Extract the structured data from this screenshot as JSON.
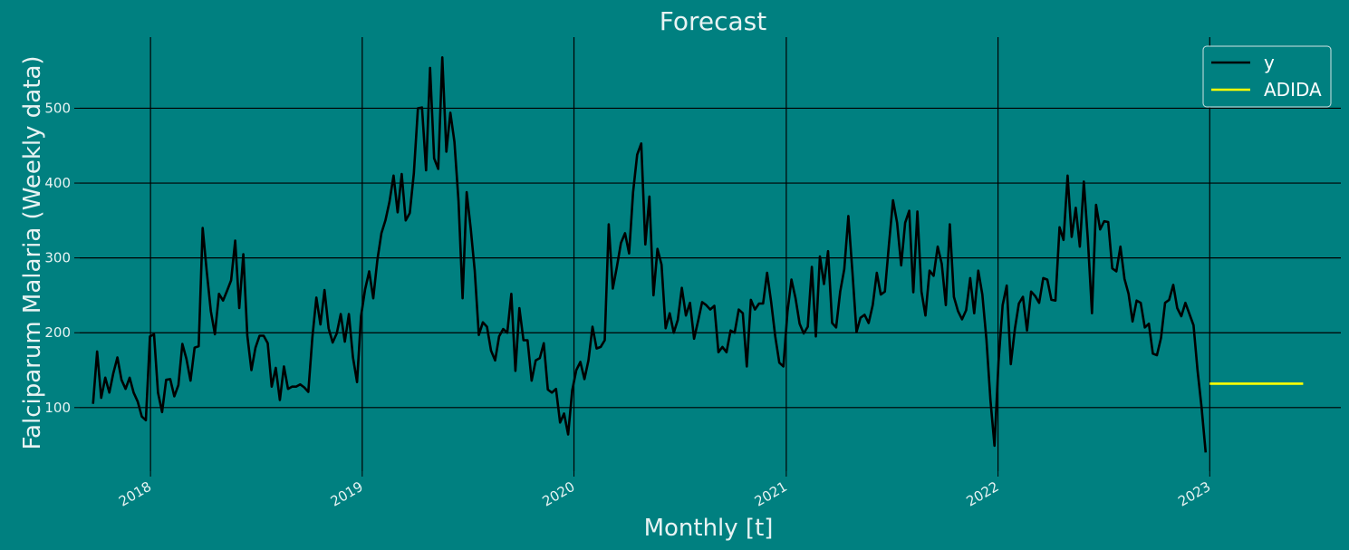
{
  "chart_data": {
    "type": "line",
    "title": "Forecast",
    "xlabel": "Monthly [t]",
    "ylabel": "Falciparum Malaria (Weekly data)",
    "x_range": [
      "2017-09-01",
      "2023-08-15"
    ],
    "ylim": [
      15,
      595
    ],
    "x_ticks": [
      "2018",
      "2019",
      "2020",
      "2021",
      "2022",
      "2023"
    ],
    "y_ticks": [
      100,
      200,
      300,
      400,
      500
    ],
    "grid": true,
    "legend_position": "top-right",
    "colors": {
      "background": "#008080",
      "y": "#000000",
      "ADIDA": "#ffff00",
      "grid": "#000000"
    },
    "series": [
      {
        "name": "y",
        "start_date": "2017-09-24",
        "interval_days": 7,
        "values": [
          105,
          175,
          113,
          140,
          120,
          146,
          167,
          137,
          125,
          140,
          120,
          108,
          88,
          83,
          195,
          198,
          120,
          94,
          137,
          138,
          115,
          130,
          185,
          165,
          136,
          180,
          182,
          340,
          282,
          229,
          198,
          252,
          243,
          256,
          270,
          323,
          233,
          305,
          196,
          150,
          180,
          196,
          196,
          186,
          128,
          153,
          110,
          155,
          125,
          128,
          128,
          131,
          127,
          121,
          194,
          247,
          211,
          257,
          206,
          187,
          199,
          225,
          188,
          225,
          167,
          134,
          222,
          258,
          282,
          246,
          297,
          333,
          350,
          375,
          410,
          361,
          412,
          350,
          360,
          413,
          500,
          501,
          417,
          554,
          433,
          419,
          568,
          442,
          494,
          455,
          376,
          246,
          388,
          339,
          283,
          197,
          214,
          208,
          176,
          163,
          195,
          205,
          200,
          252,
          149,
          233,
          190,
          190,
          136,
          163,
          166,
          186,
          124,
          120,
          125,
          80,
          92,
          64,
          123,
          150,
          161,
          138,
          163,
          208,
          179,
          181,
          190,
          345,
          259,
          288,
          320,
          333,
          306,
          388,
          438,
          453,
          318,
          382,
          250,
          312,
          291,
          206,
          226,
          200,
          217,
          260,
          223,
          240,
          192,
          216,
          241,
          237,
          231,
          236,
          174,
          181,
          174,
          203,
          200,
          231,
          226,
          155,
          244,
          231,
          239,
          239,
          280,
          241,
          195,
          160,
          155,
          228,
          271,
          246,
          212,
          199,
          208,
          288,
          195,
          302,
          265,
          309,
          213,
          207,
          255,
          285,
          356,
          281,
          201,
          220,
          224,
          213,
          237,
          280,
          251,
          255,
          318,
          377,
          347,
          290,
          347,
          363,
          254,
          362,
          255,
          223,
          283,
          276,
          315,
          292,
          237,
          345,
          248,
          229,
          218,
          230,
          273,
          226,
          283,
          251,
          191,
          109,
          49,
          162,
          237,
          263,
          158,
          205,
          239,
          248,
          203,
          255,
          249,
          240,
          273,
          271,
          244,
          243,
          341,
          324,
          410,
          328,
          367,
          315,
          402,
          324,
          226,
          371,
          338,
          349,
          348,
          286,
          282,
          315,
          272,
          252,
          215,
          243,
          240,
          207,
          212,
          172,
          170,
          193,
          240,
          244,
          264,
          233,
          222,
          240,
          225,
          210,
          150,
          100,
          40
        ]
      },
      {
        "name": "ADIDA",
        "start_date": "2023-01-01",
        "interval_days": 7,
        "values": [
          132,
          132,
          132,
          132,
          132,
          132,
          132,
          132,
          132,
          132,
          132,
          132,
          132,
          132,
          132,
          132,
          132,
          132,
          132,
          132,
          132,
          132,
          132,
          132
        ]
      }
    ]
  }
}
